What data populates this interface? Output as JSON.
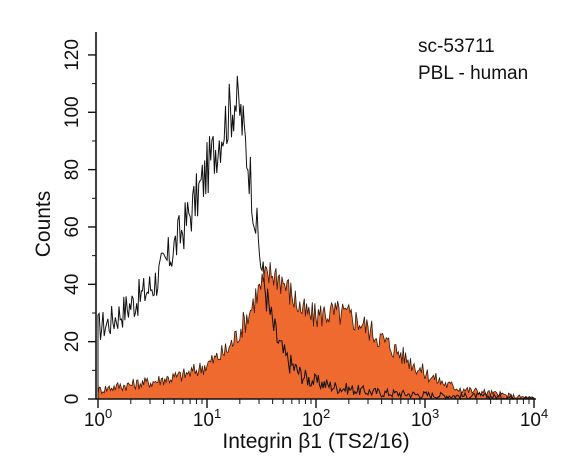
{
  "chart_data": {
    "type": "area",
    "title": "",
    "xlabel": "Integrin β1 (TS2/16)",
    "ylabel": "Counts",
    "x_scale": "log",
    "xlim": [
      1,
      10000
    ],
    "ylim": [
      0,
      128
    ],
    "x_ticks": [
      {
        "value": 1,
        "base": "10",
        "exp": "0"
      },
      {
        "value": 10,
        "base": "10",
        "exp": "1"
      },
      {
        "value": 100,
        "base": "10",
        "exp": "2"
      },
      {
        "value": 1000,
        "base": "10",
        "exp": "3"
      },
      {
        "value": 10000,
        "base": "10",
        "exp": "4"
      }
    ],
    "y_ticks": [
      0,
      20,
      40,
      60,
      80,
      100,
      120
    ],
    "annotations": [
      "sc-53711",
      "PBL - human"
    ],
    "grid": false,
    "legend": "none",
    "series": [
      {
        "style": "outline",
        "color": "#111111",
        "x": [
          1,
          1.3,
          1.6,
          2,
          2.5,
          3.2,
          4,
          5,
          6.3,
          8,
          10,
          12,
          14,
          16,
          18,
          20,
          22,
          25,
          28,
          32,
          36,
          40,
          45,
          50,
          56,
          63,
          71,
          80,
          90,
          100,
          125,
          158,
          200,
          251,
          316,
          398,
          501,
          631,
          794,
          1000,
          1259,
          1585,
          1995,
          2512,
          3162,
          3981,
          5012,
          6310,
          7943,
          10000
        ],
        "y": [
          25,
          27,
          30,
          33,
          36,
          40,
          46,
          53,
          61,
          70,
          80,
          88,
          95,
          100,
          104,
          101,
          92,
          78,
          62,
          45,
          34,
          26,
          20,
          16,
          13,
          11,
          9,
          7.5,
          6.5,
          6,
          5,
          4,
          3.5,
          3,
          2.5,
          2.2,
          2,
          1.8,
          1.6,
          1.5,
          1.3,
          1.2,
          1.1,
          1,
          1,
          0.9,
          0.8,
          0.6,
          0.4,
          0.2
        ]
      },
      {
        "style": "filled",
        "color": "#ee6a2e",
        "x": [
          1,
          1.3,
          1.6,
          2,
          2.5,
          3.2,
          4,
          5,
          6.3,
          8,
          10,
          12,
          14,
          16,
          18,
          20,
          22,
          25,
          28,
          32,
          36,
          40,
          45,
          50,
          56,
          63,
          71,
          80,
          90,
          100,
          125,
          158,
          200,
          251,
          316,
          398,
          501,
          631,
          794,
          1000,
          1259,
          1585,
          1995,
          2512,
          3162,
          3981,
          5012,
          6310,
          7943,
          10000
        ],
        "y": [
          3,
          4,
          4.5,
          5,
          5.5,
          6,
          7,
          7.5,
          8.5,
          10,
          12,
          14,
          16,
          18,
          21,
          24,
          27,
          31,
          36,
          40,
          43,
          44,
          43,
          41,
          38,
          35,
          32,
          30,
          29,
          29,
          30,
          30,
          29,
          27,
          24,
          21,
          18,
          15,
          12,
          9,
          7,
          5,
          4,
          3,
          2.5,
          2,
          1.5,
          1,
          0.6,
          0.3
        ]
      }
    ]
  }
}
